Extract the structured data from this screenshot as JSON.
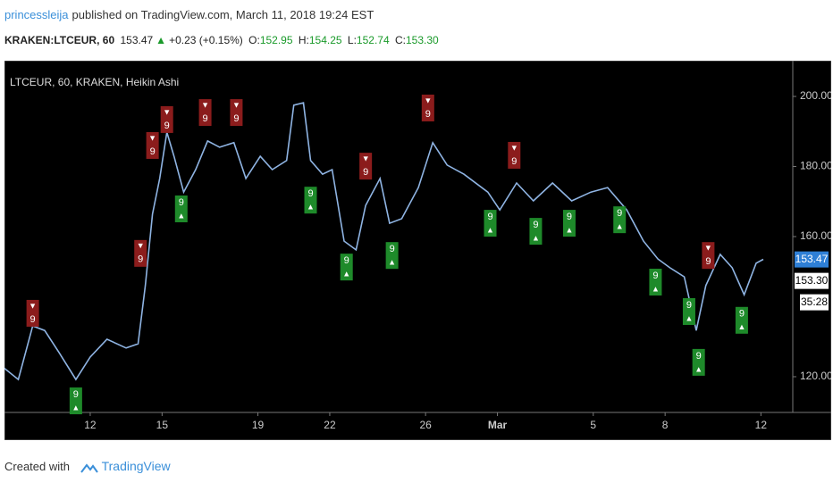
{
  "header": {
    "author": "princessleija",
    "published": "published on TradingView.com, March 11, 2018 19:24 EST"
  },
  "quote": {
    "symbol": "KRAKEN:LTCEUR, 60",
    "last": "153.47",
    "arrow": "▲",
    "change": "+0.23 (+0.15%)",
    "open_label": "O:",
    "open": "152.95",
    "high_label": "H:",
    "high": "154.25",
    "low_label": "L:",
    "low": "152.74",
    "close_label": "C:",
    "close": "153.30"
  },
  "chart_data": {
    "type": "line",
    "legend": "LTCEUR, 60, KRAKEN, Heikin Ashi",
    "background": "#000000",
    "color": "#8fb4e3",
    "x": [
      8.4,
      9.0,
      9.6,
      10.1,
      10.7,
      11.4,
      12.0,
      12.7,
      13.5,
      14.0,
      14.3,
      14.6,
      14.9,
      15.2,
      15.5,
      15.9,
      16.4,
      16.9,
      17.4,
      18.0,
      18.5,
      19.1,
      19.6,
      20.2,
      20.5,
      20.9,
      21.2,
      21.7,
      22.1,
      22.6,
      23.1,
      23.5,
      24.1,
      24.5,
      25.0,
      25.7,
      26.3,
      26.9,
      27.6,
      28.6,
      29.1,
      29.8,
      30.5,
      31.3,
      32.1,
      32.9,
      33.6,
      34.4,
      35.1,
      35.7,
      36.2,
      36.8,
      37.3,
      37.7,
      38.3,
      38.8,
      39.3,
      39.8,
      40.1
    ],
    "values": [
      122.5,
      119.2,
      134.5,
      133.2,
      126.9,
      119.2,
      125.6,
      130.7,
      128.2,
      129.4,
      146.0,
      166.4,
      176.6,
      189.8,
      182.9,
      172.7,
      179.1,
      187.3,
      185.5,
      186.8,
      176.6,
      182.9,
      179.1,
      181.7,
      197.5,
      198.2,
      181.7,
      177.8,
      179.1,
      158.7,
      156.2,
      168.9,
      176.6,
      163.8,
      165.1,
      174.0,
      186.8,
      180.4,
      177.8,
      172.7,
      167.6,
      175.3,
      170.2,
      175.3,
      170.2,
      172.7,
      174.0,
      167.6,
      158.7,
      153.6,
      151.1,
      148.5,
      133.2,
      146.0,
      154.9,
      151.1,
      143.4,
      152.4,
      153.5
    ],
    "xlim": [
      8.42,
      41.33
    ],
    "xticks": [
      12,
      15,
      19,
      22,
      26,
      {
        "value": 29,
        "label": "Mar"
      },
      {
        "value": 33,
        "label": "5"
      },
      {
        "value": 36,
        "label": "8"
      },
      {
        "value": 40,
        "label": "12"
      }
    ],
    "ylim": [
      109.8,
      210.2
    ],
    "yticks": [
      {
        "value": 120,
        "label": "120.00"
      },
      {
        "value": 160,
        "label": "160.00"
      },
      {
        "value": 180,
        "label": "180.00"
      },
      {
        "value": 200,
        "label": "200.00"
      }
    ],
    "signals": [
      {
        "x": 9.6,
        "price": 138.1,
        "arrow": "▼",
        "label": "9",
        "color": "#8b1c1c"
      },
      {
        "x": 14.1,
        "price": 155.2,
        "arrow": "▼",
        "label": "9",
        "color": "#8b1c1c"
      },
      {
        "x": 14.6,
        "price": 186.0,
        "arrow": "▼",
        "label": "9",
        "color": "#8b1c1c"
      },
      {
        "x": 15.2,
        "price": 193.4,
        "arrow": "▼",
        "label": "9",
        "color": "#8b1c1c"
      },
      {
        "x": 16.8,
        "price": 195.4,
        "arrow": "▼",
        "label": "9",
        "color": "#8b1c1c"
      },
      {
        "x": 18.1,
        "price": 195.4,
        "arrow": "▼",
        "label": "9",
        "color": "#8b1c1c"
      },
      {
        "x": 23.5,
        "price": 180.1,
        "arrow": "▼",
        "label": "9",
        "color": "#8b1c1c"
      },
      {
        "x": 26.1,
        "price": 196.7,
        "arrow": "▼",
        "label": "9",
        "color": "#8b1c1c"
      },
      {
        "x": 29.7,
        "price": 183.2,
        "arrow": "▼",
        "label": "9",
        "color": "#8b1c1c"
      },
      {
        "x": 37.8,
        "price": 154.6,
        "arrow": "▼",
        "label": "9",
        "color": "#8b1c1c"
      },
      {
        "x": 11.4,
        "price": 113.1,
        "arrow": "▲",
        "label": "9",
        "color": "#1e8a2a"
      },
      {
        "x": 15.8,
        "price": 167.9,
        "arrow": "▲",
        "label": "9",
        "color": "#1e8a2a"
      },
      {
        "x": 21.2,
        "price": 170.4,
        "arrow": "▲",
        "label": "9",
        "color": "#1e8a2a"
      },
      {
        "x": 22.7,
        "price": 151.3,
        "arrow": "▲",
        "label": "9",
        "color": "#1e8a2a"
      },
      {
        "x": 24.6,
        "price": 154.6,
        "arrow": "▲",
        "label": "9",
        "color": "#1e8a2a"
      },
      {
        "x": 28.7,
        "price": 163.8,
        "arrow": "▲",
        "label": "9",
        "color": "#1e8a2a"
      },
      {
        "x": 30.6,
        "price": 161.5,
        "arrow": "▲",
        "label": "9",
        "color": "#1e8a2a"
      },
      {
        "x": 32.0,
        "price": 163.8,
        "arrow": "▲",
        "label": "9",
        "color": "#1e8a2a"
      },
      {
        "x": 34.1,
        "price": 164.8,
        "arrow": "▲",
        "label": "9",
        "color": "#1e8a2a"
      },
      {
        "x": 35.6,
        "price": 147.0,
        "arrow": "▲",
        "label": "9",
        "color": "#1e8a2a"
      },
      {
        "x": 37.0,
        "price": 138.6,
        "arrow": "▲",
        "label": "9",
        "color": "#1e8a2a"
      },
      {
        "x": 37.4,
        "price": 124.1,
        "arrow": "▲",
        "label": "9",
        "color": "#1e8a2a"
      },
      {
        "x": 39.2,
        "price": 136.1,
        "arrow": "▲",
        "label": "9",
        "color": "#1e8a2a"
      }
    ],
    "price_tags": [
      {
        "value": 153.47,
        "label": "153.47",
        "color": "#2e7fd6"
      },
      {
        "value": 153.3,
        "label": "153.30",
        "color": "#ffffff"
      }
    ],
    "countdown": "35:28"
  },
  "footer": {
    "created_with": "Created with",
    "brand": "TradingView"
  }
}
